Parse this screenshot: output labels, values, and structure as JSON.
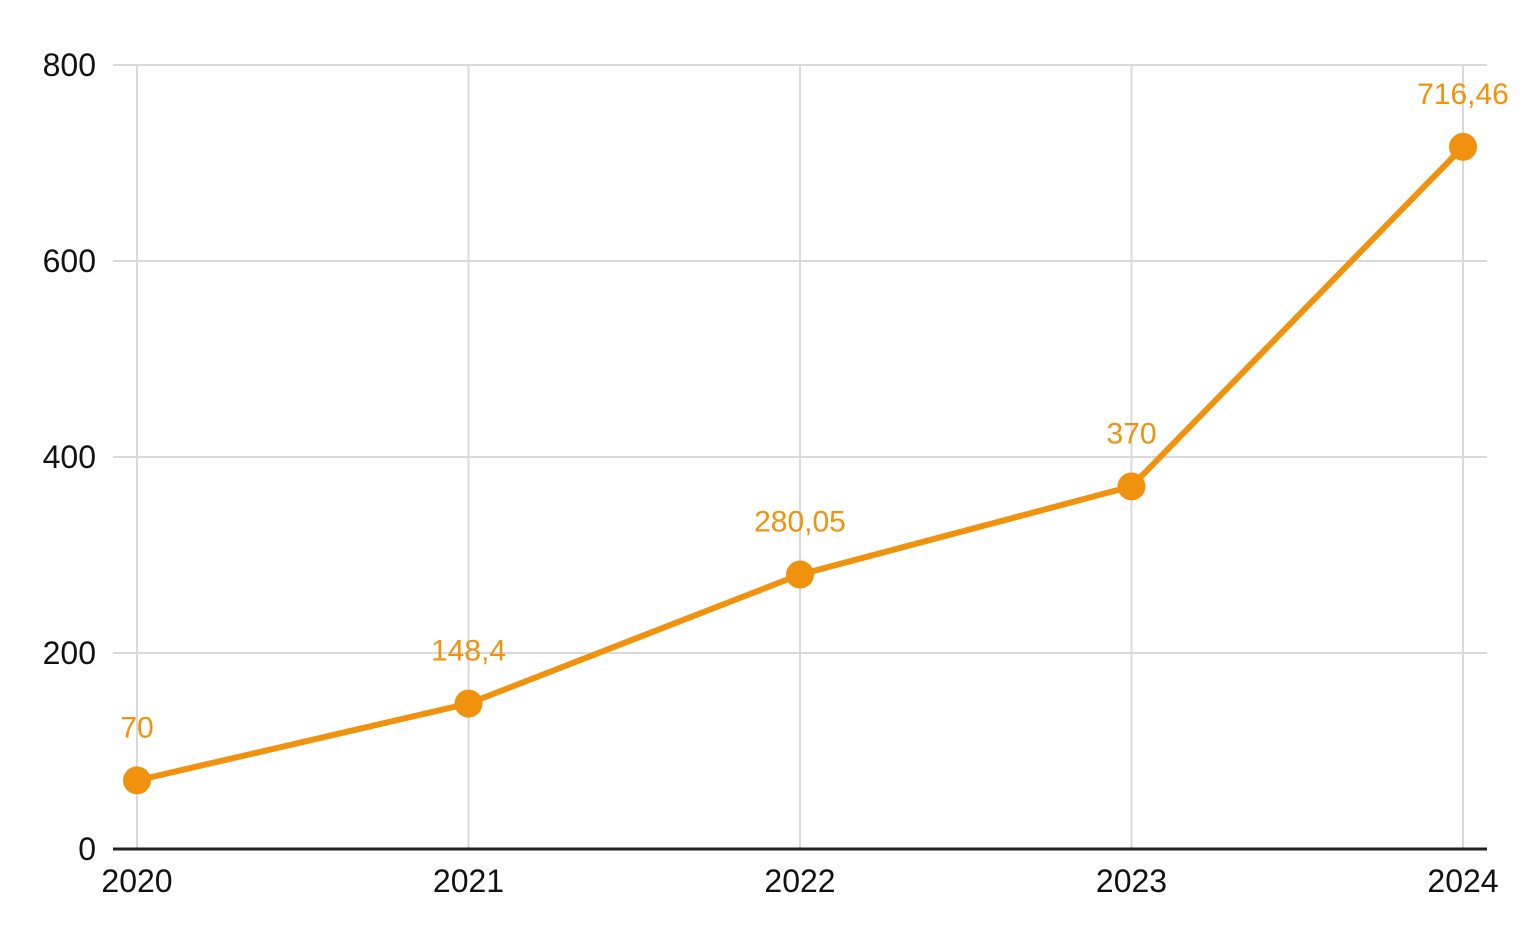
{
  "chart_data": {
    "type": "line",
    "categories": [
      "2020",
      "2021",
      "2022",
      "2023",
      "2024"
    ],
    "values": [
      70,
      148.4,
      280.05,
      370,
      716.46
    ],
    "point_labels": [
      "70",
      "148,4",
      "280,05",
      "370",
      "716,46"
    ],
    "y_ticks": [
      0,
      200,
      400,
      600,
      800
    ],
    "y_tick_labels": [
      "0",
      "200",
      "400",
      "600",
      "800"
    ],
    "ylim": [
      0,
      800
    ],
    "grid": true,
    "legend_position": "none",
    "colors": {
      "line": "#F0920D",
      "point": "#F0920D",
      "point_label_text": "#F0920D",
      "gridline": "#D9D9D9",
      "axis_line": "#212121",
      "tick_label_text": "#111111",
      "background": "#FFFFFF"
    }
  }
}
